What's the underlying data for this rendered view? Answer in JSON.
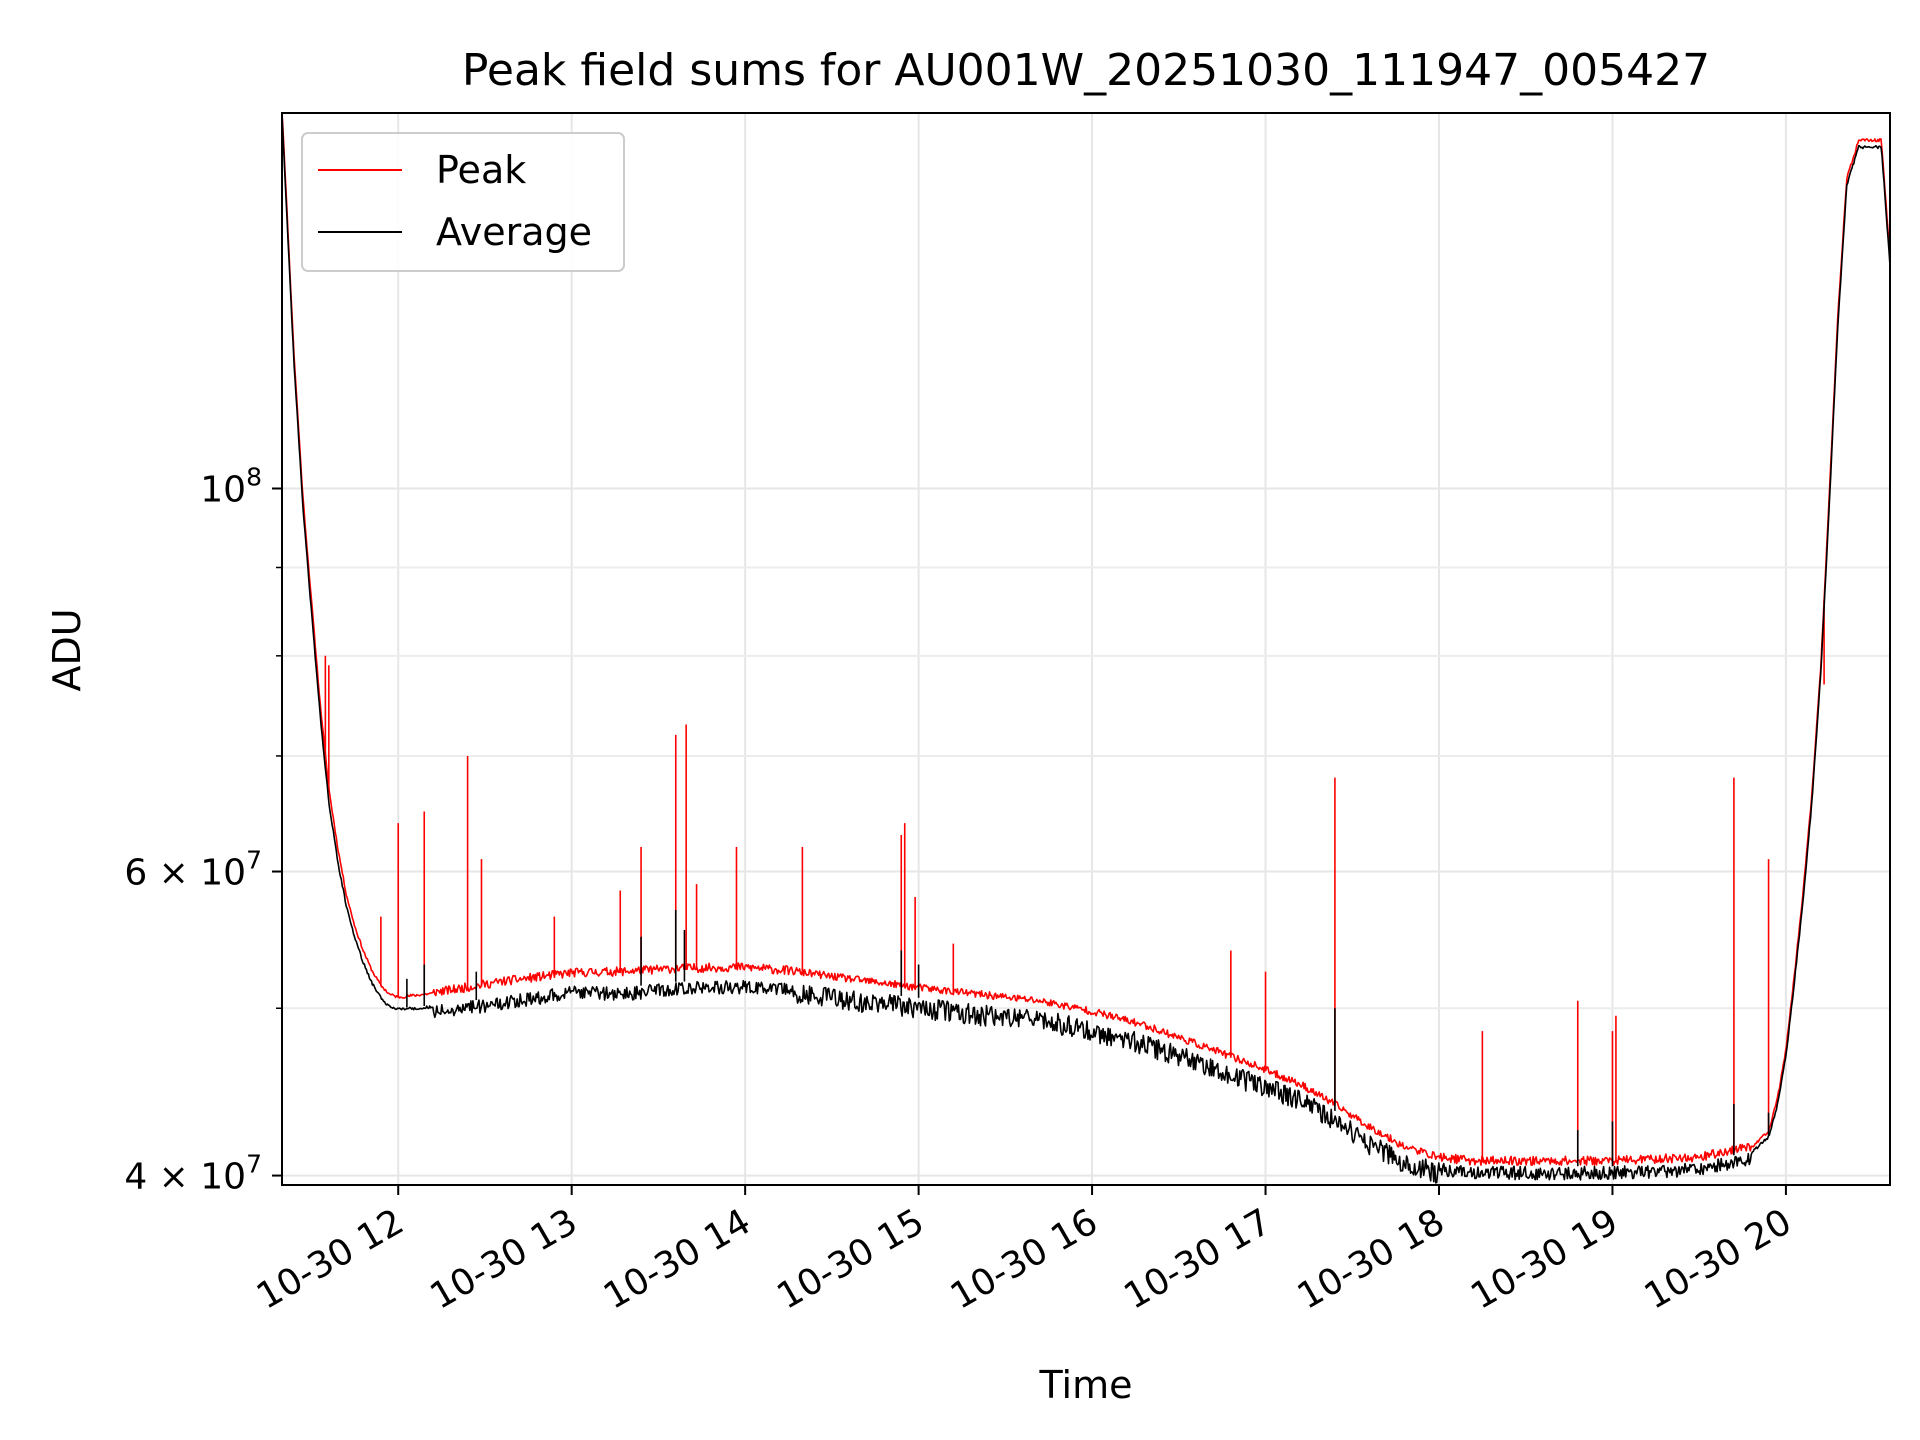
{
  "chart_data": {
    "type": "line",
    "title": "Peak field sums for AU001W_20251030_111947_005427",
    "xlabel": "Time",
    "ylabel": "ADU",
    "yscale": "log",
    "grid": true,
    "legend_position": "top-left",
    "xlim_hours": [
      11.33,
      20.6
    ],
    "ylim": [
      39500000,
      165000000
    ],
    "x_ticks": [
      {
        "value": 12,
        "label": "10-30 12"
      },
      {
        "value": 13,
        "label": "10-30 13"
      },
      {
        "value": 14,
        "label": "10-30 14"
      },
      {
        "value": 15,
        "label": "10-30 15"
      },
      {
        "value": 16,
        "label": "10-30 16"
      },
      {
        "value": 17,
        "label": "10-30 17"
      },
      {
        "value": 18,
        "label": "10-30 18"
      },
      {
        "value": 19,
        "label": "10-30 19"
      },
      {
        "value": 20,
        "label": "10-30 20"
      }
    ],
    "y_ticks": [
      {
        "value": 40000000,
        "base": "4",
        "times": "×",
        "exp_base": "10",
        "exp": "7"
      },
      {
        "value": 60000000,
        "base": "6",
        "times": "×",
        "exp_base": "10",
        "exp": "7"
      },
      {
        "value": 100000000,
        "base": "",
        "times": "",
        "exp_base": "10",
        "exp": "8"
      }
    ],
    "y_minor_ticks": [
      50000000,
      70000000,
      80000000,
      90000000
    ],
    "series": [
      {
        "name": "Average",
        "color": "#000000",
        "points": [
          [
            11.33,
            165000000
          ],
          [
            11.4,
            118000000
          ],
          [
            11.45,
            98000000
          ],
          [
            11.5,
            85000000
          ],
          [
            11.55,
            74000000
          ],
          [
            11.6,
            66000000
          ],
          [
            11.65,
            61000000
          ],
          [
            11.7,
            57500000
          ],
          [
            11.75,
            55000000
          ],
          [
            11.8,
            53200000
          ],
          [
            11.85,
            51800000
          ],
          [
            11.9,
            50800000
          ],
          [
            11.95,
            50200000
          ],
          [
            12.0,
            50000000
          ],
          [
            12.3,
            50300000
          ],
          [
            12.6,
            50800000
          ],
          [
            13.0,
            51500000
          ],
          [
            13.3,
            51400000
          ],
          [
            13.6,
            51800000
          ],
          [
            14.0,
            51900000
          ],
          [
            14.3,
            51700000
          ],
          [
            14.6,
            51200000
          ],
          [
            15.0,
            50700000
          ],
          [
            15.3,
            50300000
          ],
          [
            15.7,
            49900000
          ],
          [
            16.0,
            49200000
          ],
          [
            16.3,
            48300000
          ],
          [
            16.6,
            47200000
          ],
          [
            16.9,
            46000000
          ],
          [
            17.2,
            44800000
          ],
          [
            17.4,
            43600000
          ],
          [
            17.6,
            42300000
          ],
          [
            17.8,
            41200000
          ],
          [
            18.0,
            40700000
          ],
          [
            18.2,
            40500000
          ],
          [
            18.5,
            40500000
          ],
          [
            19.0,
            40500000
          ],
          [
            19.5,
            40700000
          ],
          [
            19.8,
            41300000
          ],
          [
            19.9,
            42200000
          ],
          [
            19.95,
            44000000
          ],
          [
            20.0,
            47000000
          ],
          [
            20.05,
            52000000
          ],
          [
            20.1,
            58000000
          ],
          [
            20.15,
            66000000
          ],
          [
            20.2,
            78000000
          ],
          [
            20.25,
            98000000
          ],
          [
            20.3,
            125000000
          ],
          [
            20.35,
            150000000
          ],
          [
            20.42,
            158000000
          ],
          [
            20.55,
            158000000
          ],
          [
            20.6,
            135000000
          ]
        ],
        "spikes": [
          [
            12.05,
            52000000
          ],
          [
            12.15,
            53000000
          ],
          [
            12.45,
            52500000
          ],
          [
            13.4,
            55000000
          ],
          [
            13.6,
            57000000
          ],
          [
            13.65,
            55500000
          ],
          [
            14.9,
            54000000
          ],
          [
            15.0,
            53000000
          ],
          [
            17.4,
            50000000
          ],
          [
            18.8,
            42500000
          ],
          [
            19.0,
            43000000
          ],
          [
            19.7,
            44000000
          ],
          [
            19.9,
            43500000
          ]
        ]
      },
      {
        "name": "Peak",
        "color": "#ff0000",
        "points": [
          [
            11.33,
            166000000
          ],
          [
            11.4,
            119000000
          ],
          [
            11.45,
            99000000
          ],
          [
            11.5,
            86000000
          ],
          [
            11.55,
            75000000
          ],
          [
            11.6,
            67000000
          ],
          [
            11.65,
            62000000
          ],
          [
            11.7,
            58200000
          ],
          [
            11.75,
            55700000
          ],
          [
            11.8,
            53900000
          ],
          [
            11.85,
            52500000
          ],
          [
            11.9,
            51500000
          ],
          [
            11.95,
            50900000
          ],
          [
            12.0,
            50700000
          ],
          [
            12.3,
            51100000
          ],
          [
            12.6,
            51700000
          ],
          [
            13.0,
            52300000
          ],
          [
            13.3,
            52400000
          ],
          [
            13.6,
            52600000
          ],
          [
            14.0,
            52700000
          ],
          [
            14.3,
            52400000
          ],
          [
            14.6,
            51900000
          ],
          [
            15.0,
            51300000
          ],
          [
            15.3,
            50900000
          ],
          [
            15.7,
            50400000
          ],
          [
            16.0,
            49700000
          ],
          [
            16.3,
            48800000
          ],
          [
            16.6,
            47600000
          ],
          [
            16.9,
            46400000
          ],
          [
            17.2,
            45100000
          ],
          [
            17.4,
            43900000
          ],
          [
            17.6,
            42600000
          ],
          [
            17.8,
            41500000
          ],
          [
            18.0,
            40900000
          ],
          [
            18.2,
            40700000
          ],
          [
            18.5,
            40700000
          ],
          [
            19.0,
            40700000
          ],
          [
            19.5,
            40900000
          ],
          [
            19.8,
            41500000
          ],
          [
            19.9,
            42400000
          ],
          [
            19.95,
            44200000
          ],
          [
            20.0,
            47300000
          ],
          [
            20.05,
            52300000
          ],
          [
            20.1,
            58500000
          ],
          [
            20.15,
            66500000
          ],
          [
            20.2,
            78500000
          ],
          [
            20.25,
            99000000
          ],
          [
            20.3,
            126000000
          ],
          [
            20.35,
            151000000
          ],
          [
            20.42,
            159000000
          ],
          [
            20.55,
            159000000
          ],
          [
            20.6,
            136000000
          ]
        ],
        "spikes": [
          [
            11.58,
            80000000
          ],
          [
            11.6,
            79000000
          ],
          [
            11.9,
            56500000
          ],
          [
            12.0,
            64000000
          ],
          [
            12.15,
            65000000
          ],
          [
            12.4,
            70000000
          ],
          [
            12.48,
            61000000
          ],
          [
            12.9,
            56500000
          ],
          [
            13.28,
            58500000
          ],
          [
            13.4,
            62000000
          ],
          [
            13.6,
            72000000
          ],
          [
            13.66,
            73000000
          ],
          [
            13.72,
            59000000
          ],
          [
            13.95,
            62000000
          ],
          [
            14.33,
            62000000
          ],
          [
            14.9,
            63000000
          ],
          [
            14.92,
            64000000
          ],
          [
            14.98,
            58000000
          ],
          [
            15.2,
            54500000
          ],
          [
            16.8,
            54000000
          ],
          [
            17.0,
            52500000
          ],
          [
            17.4,
            68000000
          ],
          [
            18.25,
            48500000
          ],
          [
            18.8,
            50500000
          ],
          [
            19.0,
            48500000
          ],
          [
            19.02,
            49500000
          ],
          [
            19.7,
            68000000
          ],
          [
            19.9,
            61000000
          ],
          [
            20.22,
            77000000
          ]
        ]
      }
    ]
  }
}
